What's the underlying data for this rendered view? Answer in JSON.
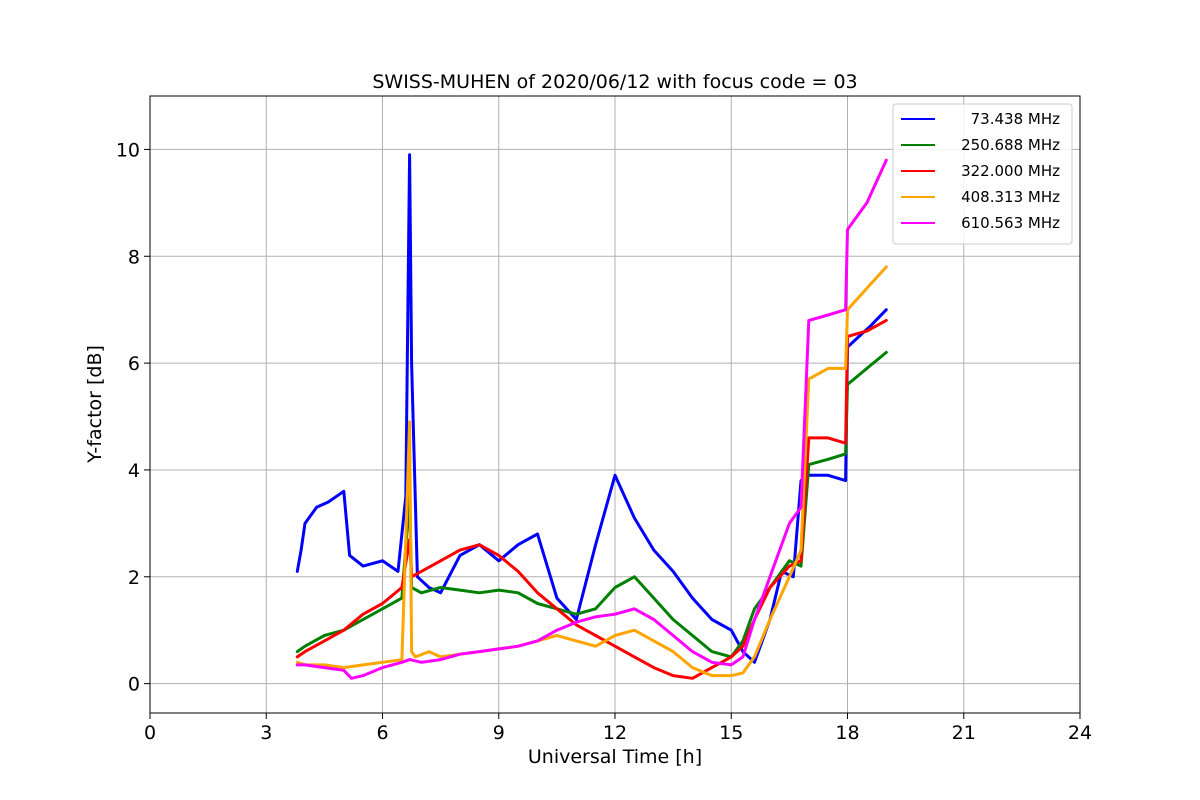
{
  "chart_data": {
    "type": "line",
    "title": "SWISS-MUHEN of 2020/06/12 with focus code = 03",
    "xlabel": "Universal Time [h]",
    "ylabel": "Y-factor [dB]",
    "xlim": [
      0,
      24
    ],
    "ylim": [
      -0.55,
      11
    ],
    "xticks": [
      0,
      3,
      6,
      9,
      12,
      15,
      18,
      21,
      24
    ],
    "yticks": [
      0,
      2,
      4,
      6,
      8,
      10
    ],
    "grid": true,
    "legend_position": "top-right",
    "series": [
      {
        "name": " 73.438 MHz",
        "color": "#0000ff",
        "x": [
          3.8,
          3.9,
          4.0,
          4.3,
          4.6,
          5.0,
          5.15,
          5.5,
          6.0,
          6.4,
          6.6,
          6.7,
          6.75,
          6.9,
          7.2,
          7.5,
          8.0,
          8.5,
          9.0,
          9.5,
          10.0,
          10.5,
          11.0,
          11.5,
          12.0,
          12.5,
          13.0,
          13.5,
          14.0,
          14.5,
          15.0,
          15.3,
          15.6,
          16.0,
          16.3,
          16.6,
          16.8,
          17.0,
          17.5,
          17.95,
          18.0,
          18.3,
          18.6,
          19.0
        ],
        "y": [
          2.1,
          2.5,
          3.0,
          3.3,
          3.4,
          3.6,
          2.4,
          2.2,
          2.3,
          2.1,
          3.5,
          9.9,
          6.0,
          2.0,
          1.8,
          1.7,
          2.4,
          2.6,
          2.3,
          2.6,
          2.8,
          1.6,
          1.2,
          2.6,
          3.9,
          3.1,
          2.5,
          2.1,
          1.6,
          1.2,
          1.0,
          0.6,
          0.4,
          1.2,
          2.1,
          2.0,
          3.8,
          3.9,
          3.9,
          3.8,
          6.3,
          6.5,
          6.7,
          7.0
        ]
      },
      {
        "name": " 250.688 MHz",
        "color": "#008000",
        "x": [
          3.8,
          4.0,
          4.5,
          5.0,
          5.5,
          6.0,
          6.5,
          6.7,
          6.75,
          7.0,
          7.5,
          8.0,
          8.5,
          9.0,
          9.5,
          10.0,
          10.5,
          11.0,
          11.5,
          12.0,
          12.5,
          13.0,
          13.5,
          14.0,
          14.5,
          15.0,
          15.3,
          15.6,
          16.0,
          16.5,
          16.8,
          17.0,
          17.5,
          17.95,
          18.0,
          18.5,
          19.0
        ],
        "y": [
          0.6,
          0.7,
          0.9,
          1.0,
          1.2,
          1.4,
          1.6,
          3.5,
          1.8,
          1.7,
          1.8,
          1.75,
          1.7,
          1.75,
          1.7,
          1.5,
          1.4,
          1.3,
          1.4,
          1.8,
          2.0,
          1.6,
          1.2,
          0.9,
          0.6,
          0.5,
          0.8,
          1.4,
          1.8,
          2.3,
          2.2,
          4.1,
          4.2,
          4.3,
          5.6,
          5.9,
          6.2
        ]
      },
      {
        "name": " 322.000 MHz",
        "color": "#ff0000",
        "x": [
          3.8,
          4.0,
          4.5,
          5.0,
          5.5,
          6.0,
          6.5,
          6.7,
          6.75,
          7.0,
          7.5,
          8.0,
          8.5,
          9.0,
          9.5,
          10.0,
          10.5,
          11.0,
          11.5,
          12.0,
          12.5,
          13.0,
          13.5,
          14.0,
          14.5,
          15.0,
          15.3,
          15.6,
          16.0,
          16.5,
          16.8,
          17.0,
          17.5,
          17.95,
          18.0,
          18.5,
          19.0
        ],
        "y": [
          0.5,
          0.6,
          0.8,
          1.0,
          1.3,
          1.5,
          1.8,
          2.7,
          2.0,
          2.1,
          2.3,
          2.5,
          2.6,
          2.4,
          2.1,
          1.7,
          1.4,
          1.1,
          0.9,
          0.7,
          0.5,
          0.3,
          0.15,
          0.1,
          0.3,
          0.5,
          0.7,
          1.2,
          1.8,
          2.2,
          2.3,
          4.6,
          4.6,
          4.5,
          6.5,
          6.6,
          6.8
        ]
      },
      {
        "name": " 408.313 MHz",
        "color": "#ffa500",
        "x": [
          3.8,
          4.0,
          4.5,
          5.0,
          5.5,
          6.0,
          6.5,
          6.7,
          6.75,
          6.85,
          7.2,
          7.5,
          8.0,
          8.5,
          9.0,
          9.5,
          10.0,
          10.5,
          11.0,
          11.5,
          12.0,
          12.5,
          13.0,
          13.5,
          14.0,
          14.5,
          15.0,
          15.3,
          15.6,
          16.0,
          16.5,
          16.8,
          17.0,
          17.5,
          17.95,
          18.0,
          18.5,
          19.0
        ],
        "y": [
          0.4,
          0.35,
          0.35,
          0.3,
          0.35,
          0.4,
          0.45,
          4.9,
          0.6,
          0.5,
          0.6,
          0.5,
          0.55,
          0.6,
          0.65,
          0.7,
          0.8,
          0.9,
          0.8,
          0.7,
          0.9,
          1.0,
          0.8,
          0.6,
          0.3,
          0.15,
          0.15,
          0.2,
          0.5,
          1.2,
          2.0,
          2.5,
          5.7,
          5.9,
          5.9,
          7.0,
          7.4,
          7.8
        ]
      },
      {
        "name": " 610.563 MHz",
        "color": "#ff00ff",
        "x": [
          3.8,
          4.0,
          4.5,
          5.0,
          5.2,
          5.5,
          6.0,
          6.5,
          6.7,
          7.0,
          7.5,
          8.0,
          8.5,
          9.0,
          9.5,
          10.0,
          10.5,
          11.0,
          11.5,
          12.0,
          12.5,
          13.0,
          13.5,
          14.0,
          14.5,
          15.0,
          15.3,
          15.6,
          16.0,
          16.5,
          16.8,
          17.0,
          17.5,
          17.95,
          18.0,
          18.5,
          19.0
        ],
        "y": [
          0.35,
          0.35,
          0.3,
          0.25,
          0.1,
          0.15,
          0.3,
          0.4,
          0.45,
          0.4,
          0.45,
          0.55,
          0.6,
          0.65,
          0.7,
          0.8,
          1.0,
          1.15,
          1.25,
          1.3,
          1.4,
          1.2,
          0.9,
          0.6,
          0.4,
          0.35,
          0.5,
          1.2,
          2.0,
          3.0,
          3.3,
          6.8,
          6.9,
          7.0,
          8.5,
          9.0,
          9.8
        ]
      }
    ]
  }
}
